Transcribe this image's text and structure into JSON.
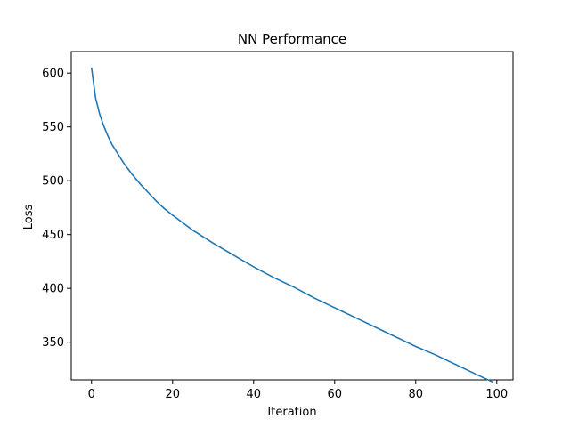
{
  "chart_data": {
    "type": "line",
    "title": "NN Performance",
    "xlabel": "Iteration",
    "ylabel": "Loss",
    "xlim": [
      -5,
      104
    ],
    "ylim": [
      315,
      620
    ],
    "xticks": [
      0,
      20,
      40,
      60,
      80,
      100
    ],
    "yticks": [
      350,
      400,
      450,
      500,
      550,
      600
    ],
    "grid": false,
    "legend": "none",
    "line_color": "#1f77b4",
    "series": [
      {
        "x": [
          0,
          1,
          2,
          3,
          4,
          5,
          6,
          7,
          8,
          9,
          10,
          12,
          14,
          16,
          18,
          20,
          25,
          30,
          35,
          40,
          45,
          50,
          55,
          60,
          65,
          70,
          75,
          80,
          85,
          90,
          95,
          99
        ],
        "values": [
          605,
          577,
          562,
          551,
          542,
          534,
          528,
          522,
          516,
          511,
          506,
          497,
          489,
          481,
          474,
          468,
          454,
          442,
          431,
          420,
          410,
          401,
          391,
          382,
          373,
          364,
          355,
          346,
          338,
          329,
          320,
          313
        ]
      }
    ]
  }
}
